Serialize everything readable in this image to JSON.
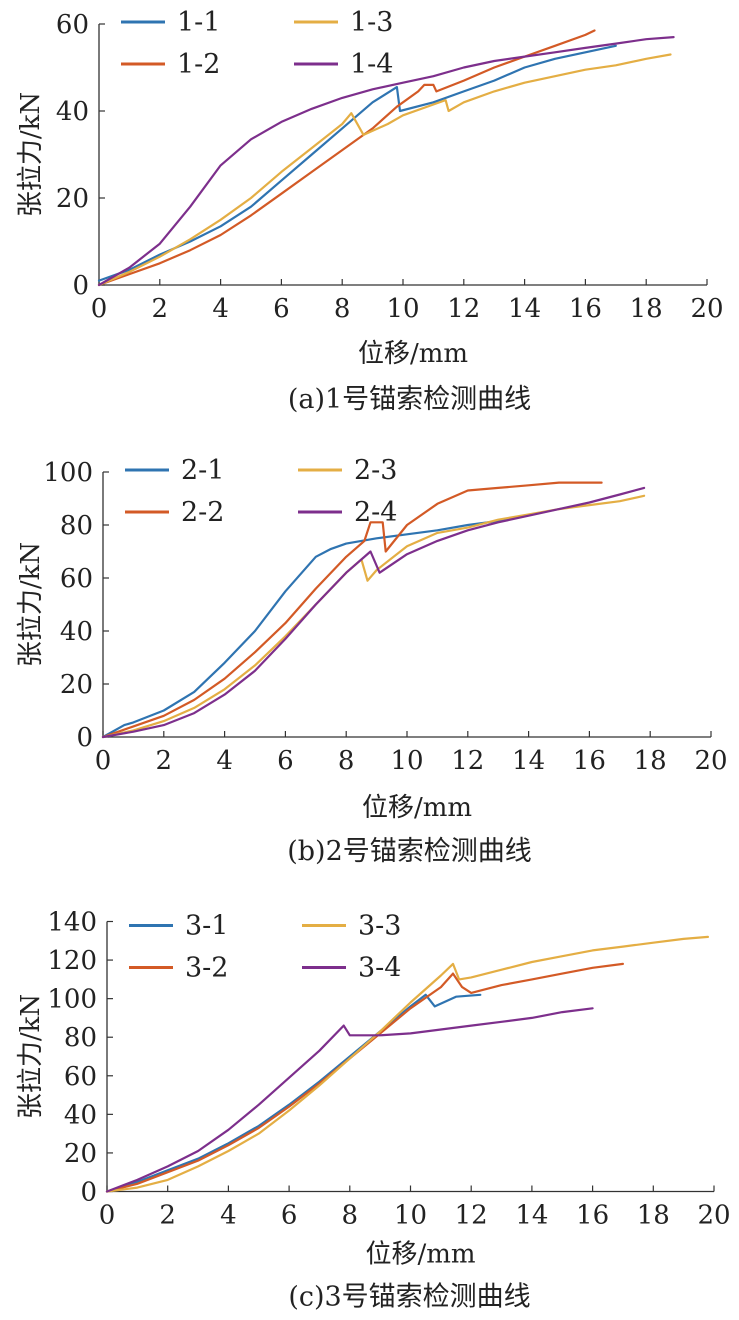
{
  "colors": {
    "blue": "#2f74b1",
    "red": "#d35a26",
    "yellow": "#e4ae44",
    "purple": "#7d2f8c"
  },
  "chart_data": [
    {
      "type": "line",
      "caption": "(a)1号锚索检测曲线",
      "xlabel": "位移/mm",
      "ylabel": "张拉力/kN",
      "xlim": [
        0,
        20
      ],
      "ylim": [
        0,
        60
      ],
      "xticks": [
        0,
        2,
        4,
        6,
        8,
        10,
        12,
        14,
        16,
        18,
        20
      ],
      "yticks": [
        0,
        20,
        40,
        60
      ],
      "legend_position": "top-left",
      "series": [
        {
          "name": "1-1",
          "color": "#2f74b1",
          "points": [
            [
              0,
              1
            ],
            [
              1,
              3.5
            ],
            [
              2,
              7
            ],
            [
              3,
              10
            ],
            [
              4,
              13.5
            ],
            [
              5,
              18
            ],
            [
              6,
              24
            ],
            [
              7,
              30
            ],
            [
              8,
              36
            ],
            [
              9,
              42
            ],
            [
              9.8,
              45.5
            ],
            [
              9.9,
              40
            ],
            [
              11,
              42
            ],
            [
              12,
              44.5
            ],
            [
              13,
              47
            ],
            [
              14,
              50
            ],
            [
              15,
              52
            ],
            [
              16,
              53.5
            ],
            [
              17,
              55
            ]
          ]
        },
        {
          "name": "1-2",
          "color": "#d35a26",
          "points": [
            [
              0,
              0
            ],
            [
              1,
              2.5
            ],
            [
              2,
              5
            ],
            [
              3,
              8
            ],
            [
              4,
              11.5
            ],
            [
              5,
              16
            ],
            [
              6,
              21
            ],
            [
              7,
              26
            ],
            [
              8,
              31
            ],
            [
              9,
              36
            ],
            [
              9.8,
              41
            ],
            [
              10.5,
              44.5
            ],
            [
              10.7,
              46
            ],
            [
              11,
              46
            ],
            [
              11.1,
              44.5
            ],
            [
              12,
              47
            ],
            [
              13,
              50
            ],
            [
              14,
              52.5
            ],
            [
              15,
              55
            ],
            [
              16,
              57.5
            ],
            [
              16.3,
              58.5
            ]
          ]
        },
        {
          "name": "1-3",
          "color": "#e4ae44",
          "points": [
            [
              0,
              0
            ],
            [
              1,
              3
            ],
            [
              2,
              6.5
            ],
            [
              3,
              10.5
            ],
            [
              4,
              15
            ],
            [
              5,
              20
            ],
            [
              6,
              26
            ],
            [
              7,
              31.5
            ],
            [
              8,
              37
            ],
            [
              8.3,
              39.5
            ],
            [
              8.7,
              34.5
            ],
            [
              9.5,
              37
            ],
            [
              10,
              39
            ],
            [
              11,
              41.5
            ],
            [
              11.4,
              42.5
            ],
            [
              11.5,
              40
            ],
            [
              12,
              42
            ],
            [
              13,
              44.5
            ],
            [
              14,
              46.5
            ],
            [
              15,
              48
            ],
            [
              16,
              49.5
            ],
            [
              17,
              50.5
            ],
            [
              18,
              52
            ],
            [
              18.8,
              53
            ]
          ]
        },
        {
          "name": "1-4",
          "color": "#7d2f8c",
          "points": [
            [
              0,
              0
            ],
            [
              1,
              4
            ],
            [
              2,
              9.5
            ],
            [
              3,
              18
            ],
            [
              4,
              27.5
            ],
            [
              5,
              33.5
            ],
            [
              6,
              37.5
            ],
            [
              7,
              40.5
            ],
            [
              8,
              43
            ],
            [
              9,
              45
            ],
            [
              10,
              46.5
            ],
            [
              11,
              48
            ],
            [
              12,
              50
            ],
            [
              13,
              51.5
            ],
            [
              14,
              52.5
            ],
            [
              15,
              53.5
            ],
            [
              16,
              54.5
            ],
            [
              17,
              55.5
            ],
            [
              18,
              56.5
            ],
            [
              18.9,
              57
            ]
          ]
        }
      ]
    },
    {
      "type": "line",
      "caption": "(b)2号锚索检测曲线",
      "xlabel": "位移/mm",
      "ylabel": "张拉力/kN",
      "xlim": [
        0,
        20
      ],
      "ylim": [
        0,
        100
      ],
      "xticks": [
        0,
        2,
        4,
        6,
        8,
        10,
        12,
        14,
        16,
        18,
        20
      ],
      "yticks": [
        0,
        20,
        40,
        60,
        80,
        100
      ],
      "legend_position": "top-left",
      "series": [
        {
          "name": "2-1",
          "color": "#2f74b1",
          "points": [
            [
              0,
              0
            ],
            [
              0.7,
              4.5
            ],
            [
              1,
              5.5
            ],
            [
              2,
              10
            ],
            [
              3,
              17
            ],
            [
              4,
              28
            ],
            [
              5,
              40
            ],
            [
              6,
              55
            ],
            [
              7,
              68
            ],
            [
              7.5,
              71
            ],
            [
              8,
              73
            ],
            [
              9,
              75
            ],
            [
              10,
              76.5
            ],
            [
              11,
              78
            ],
            [
              12,
              80
            ],
            [
              13,
              81.5
            ],
            [
              13.6,
              83
            ]
          ]
        },
        {
          "name": "2-2",
          "color": "#d35a26",
          "points": [
            [
              0,
              0
            ],
            [
              1,
              4
            ],
            [
              2,
              8
            ],
            [
              3,
              14
            ],
            [
              4,
              22
            ],
            [
              5,
              32
            ],
            [
              6,
              43
            ],
            [
              7,
              56
            ],
            [
              8,
              68
            ],
            [
              8.6,
              74
            ],
            [
              8.8,
              81
            ],
            [
              9.2,
              81
            ],
            [
              9.3,
              70
            ],
            [
              10,
              80
            ],
            [
              11,
              88
            ],
            [
              12,
              93
            ],
            [
              13,
              94
            ],
            [
              14,
              95
            ],
            [
              15,
              96
            ],
            [
              16.4,
              96
            ]
          ]
        },
        {
          "name": "2-3",
          "color": "#e4ae44",
          "points": [
            [
              0,
              0
            ],
            [
              1,
              2.5
            ],
            [
              2,
              6
            ],
            [
              3,
              11
            ],
            [
              4,
              18
            ],
            [
              5,
              27
            ],
            [
              6,
              38
            ],
            [
              7,
              50
            ],
            [
              8,
              62
            ],
            [
              8.5,
              67
            ],
            [
              8.7,
              59
            ],
            [
              9,
              63
            ],
            [
              10,
              72
            ],
            [
              11,
              77
            ],
            [
              12,
              79
            ],
            [
              13,
              82
            ],
            [
              14,
              84
            ],
            [
              15,
              86
            ],
            [
              16,
              87.5
            ],
            [
              17,
              89
            ],
            [
              17.8,
              91
            ]
          ]
        },
        {
          "name": "2-4",
          "color": "#7d2f8c",
          "points": [
            [
              0,
              0
            ],
            [
              1,
              2
            ],
            [
              2,
              4.5
            ],
            [
              3,
              9
            ],
            [
              4,
              16
            ],
            [
              5,
              25
            ],
            [
              6,
              37
            ],
            [
              7,
              50
            ],
            [
              8,
              62
            ],
            [
              8.8,
              70
            ],
            [
              9.1,
              62
            ],
            [
              10,
              69
            ],
            [
              11,
              74
            ],
            [
              12,
              78
            ],
            [
              13,
              81
            ],
            [
              14,
              83.5
            ],
            [
              15,
              86
            ],
            [
              16,
              88.5
            ],
            [
              17,
              91.5
            ],
            [
              17.8,
              94
            ]
          ]
        }
      ]
    },
    {
      "type": "line",
      "caption": "(c)3号锚索检测曲线",
      "xlabel": "位移/mm",
      "ylabel": "张拉力/kN",
      "xlim": [
        0,
        20
      ],
      "ylim": [
        0,
        140
      ],
      "xticks": [
        0,
        2,
        4,
        6,
        8,
        10,
        12,
        14,
        16,
        18,
        20
      ],
      "yticks": [
        0,
        20,
        40,
        60,
        80,
        100,
        120,
        140
      ],
      "legend_position": "top-left",
      "series": [
        {
          "name": "3-1",
          "color": "#2f74b1",
          "points": [
            [
              0,
              0
            ],
            [
              1,
              5
            ],
            [
              2,
              11
            ],
            [
              3,
              17
            ],
            [
              4,
              25
            ],
            [
              5,
              34
            ],
            [
              6,
              45
            ],
            [
              7,
              57
            ],
            [
              8,
              70
            ],
            [
              9,
              83
            ],
            [
              10,
              96
            ],
            [
              10.5,
              102
            ],
            [
              10.8,
              96
            ],
            [
              11.5,
              101
            ],
            [
              12.3,
              102
            ]
          ]
        },
        {
          "name": "3-2",
          "color": "#d35a26",
          "points": [
            [
              0,
              0
            ],
            [
              1,
              4
            ],
            [
              2,
              10
            ],
            [
              3,
              16
            ],
            [
              4,
              24
            ],
            [
              5,
              33
            ],
            [
              6,
              44
            ],
            [
              7,
              56
            ],
            [
              8,
              69
            ],
            [
              9,
              82
            ],
            [
              10,
              95
            ],
            [
              11,
              106
            ],
            [
              11.4,
              113
            ],
            [
              11.7,
              106
            ],
            [
              12,
              103
            ],
            [
              13,
              107
            ],
            [
              14,
              110
            ],
            [
              15,
              113
            ],
            [
              16,
              116
            ],
            [
              17,
              118
            ]
          ]
        },
        {
          "name": "3-3",
          "color": "#e4ae44",
          "points": [
            [
              0,
              0
            ],
            [
              1,
              2
            ],
            [
              2,
              6
            ],
            [
              3,
              13
            ],
            [
              4,
              21
            ],
            [
              5,
              30
            ],
            [
              6,
              42
            ],
            [
              7,
              55
            ],
            [
              8,
              69
            ],
            [
              9,
              83
            ],
            [
              10,
              98
            ],
            [
              11,
              112
            ],
            [
              11.4,
              118
            ],
            [
              11.6,
              110
            ],
            [
              12,
              111
            ],
            [
              13,
              115
            ],
            [
              14,
              119
            ],
            [
              15,
              122
            ],
            [
              16,
              125
            ],
            [
              17,
              127
            ],
            [
              18,
              129
            ],
            [
              19,
              131
            ],
            [
              19.8,
              132
            ]
          ]
        },
        {
          "name": "3-4",
          "color": "#7d2f8c",
          "points": [
            [
              0,
              0
            ],
            [
              1,
              6
            ],
            [
              2,
              13
            ],
            [
              3,
              21
            ],
            [
              4,
              32
            ],
            [
              5,
              45
            ],
            [
              6,
              59
            ],
            [
              7,
              73
            ],
            [
              7.8,
              86
            ],
            [
              8,
              81
            ],
            [
              9,
              81
            ],
            [
              10,
              82
            ],
            [
              11,
              84
            ],
            [
              12,
              86
            ],
            [
              13,
              88
            ],
            [
              14,
              90
            ],
            [
              15,
              93
            ],
            [
              16,
              95
            ]
          ]
        }
      ]
    }
  ]
}
